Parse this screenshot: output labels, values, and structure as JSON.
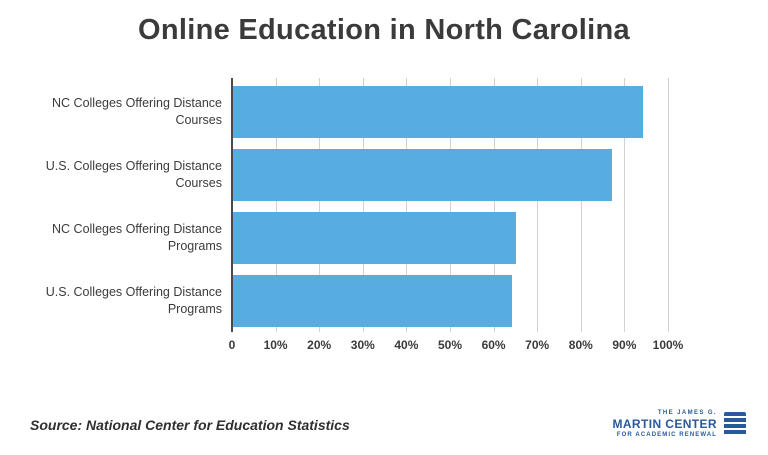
{
  "title": "Online Education in North Carolina",
  "source": "Source: National Center for Education Statistics",
  "logo": {
    "line1": "THE JAMES G.",
    "line2": "MARTIN CENTER",
    "line3": "FOR ACADEMIC RENEWAL",
    "color": "#27599c"
  },
  "chart_data": {
    "type": "bar",
    "orientation": "horizontal",
    "title": "Online Education in North Carolina",
    "categories": [
      "NC Colleges Offering Distance Courses",
      "U.S. Colleges Offering Distance Courses",
      "NC Colleges Offering Distance Programs",
      "U.S. Colleges Offering Distance Programs"
    ],
    "values": [
      94,
      87,
      65,
      64
    ],
    "xlim": [
      0,
      100
    ],
    "xticks": [
      0,
      10,
      20,
      30,
      40,
      50,
      60,
      70,
      80,
      90,
      100
    ],
    "xtick_labels": [
      "0",
      "10%",
      "20%",
      "30%",
      "40%",
      "50%",
      "60%",
      "70%",
      "80%",
      "90%",
      "100%"
    ],
    "bar_color": "#57ace0",
    "grid": true,
    "legend": false
  }
}
